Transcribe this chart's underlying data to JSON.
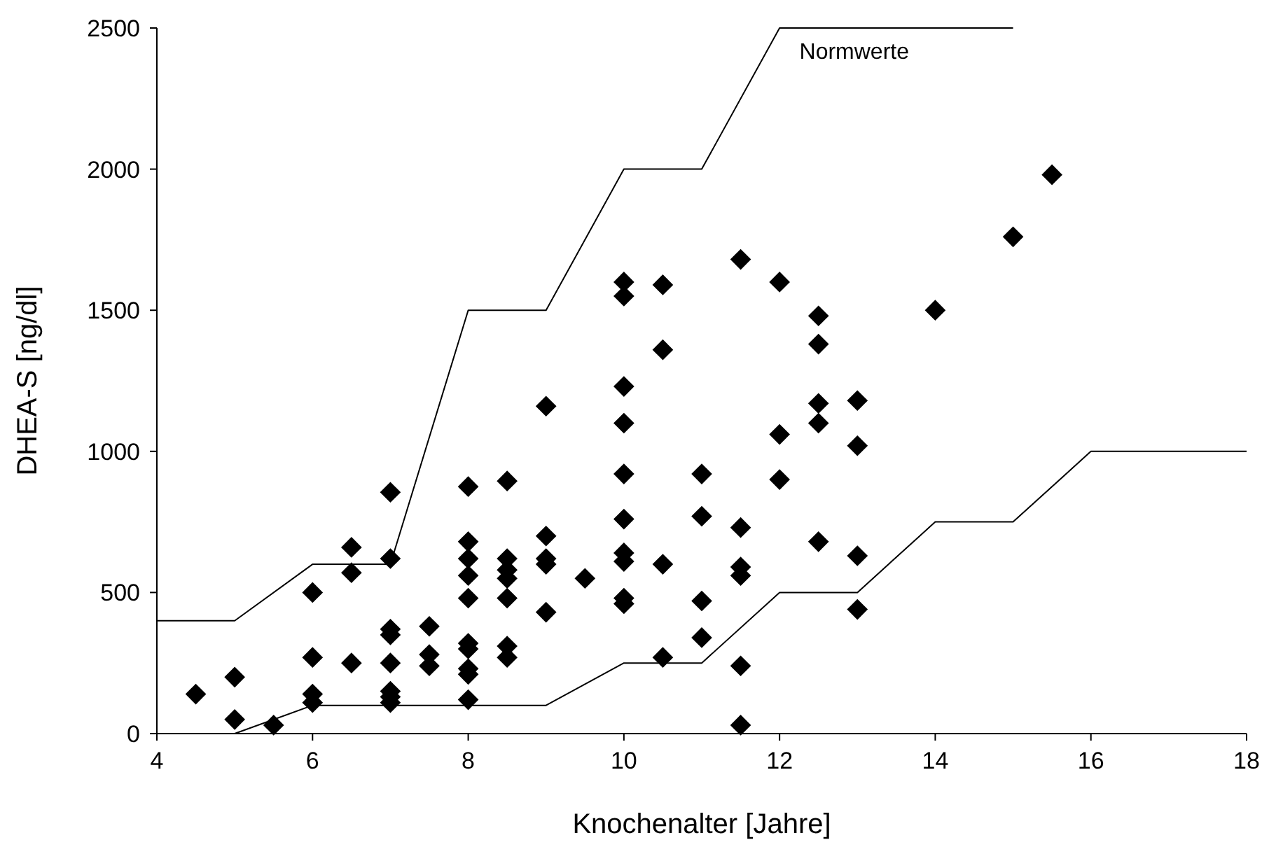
{
  "chart_data": {
    "type": "scatter",
    "xlabel": "Knochenalter [Jahre]",
    "ylabel": "DHEA-S [ng/dl]",
    "xlim": [
      4,
      18
    ],
    "xticks": [
      4,
      6,
      8,
      10,
      12,
      14,
      16,
      18
    ],
    "ylim": [
      0,
      2500
    ],
    "yticks": [
      0,
      500,
      1000,
      1500,
      2000,
      2500
    ],
    "grid": false,
    "marker": "diamond",
    "annotations": [
      "Normwerte"
    ],
    "series": [
      {
        "color": "#000000",
        "x": [
          4.5,
          5,
          5,
          5.5,
          6,
          6,
          6,
          6,
          6.5,
          6.5,
          6.5,
          7,
          7,
          7,
          7,
          7,
          7,
          7,
          7,
          7.5,
          7.5,
          7.5,
          8,
          8,
          8,
          8,
          8,
          8,
          8,
          8,
          8,
          8,
          8.5,
          8.5,
          8.5,
          8.5,
          8.5,
          8.5,
          8.5,
          9,
          9,
          9,
          9,
          9,
          9.5,
          10,
          10,
          10,
          10,
          10,
          10,
          10,
          10,
          10,
          10,
          10.5,
          10.5,
          10.5,
          10.5,
          11,
          11,
          11,
          11,
          11.5,
          11.5,
          11.5,
          11.5,
          11.5,
          11.5,
          12,
          12,
          12,
          12.5,
          12.5,
          12.5,
          12.5,
          12.5,
          13,
          13,
          13,
          13,
          14,
          15,
          15.5
        ],
        "values": [
          140,
          200,
          50,
          30,
          500,
          270,
          140,
          110,
          660,
          570,
          250,
          855,
          620,
          370,
          350,
          250,
          150,
          130,
          110,
          380,
          280,
          240,
          875,
          680,
          620,
          560,
          480,
          320,
          300,
          230,
          210,
          120,
          895,
          620,
          580,
          550,
          480,
          310,
          270,
          1160,
          700,
          620,
          600,
          430,
          550,
          1600,
          1550,
          1230,
          1100,
          920,
          760,
          640,
          610,
          480,
          460,
          1590,
          1360,
          600,
          270,
          920,
          770,
          470,
          340,
          1680,
          730,
          590,
          560,
          240,
          30,
          1600,
          1060,
          900,
          1480,
          1380,
          1170,
          1100,
          680,
          1180,
          1020,
          630,
          440,
          1500,
          1760,
          1980
        ]
      },
      {
        "type": "line",
        "color": "#000000",
        "marker": "none",
        "x": [
          4,
          5,
          6,
          7,
          8,
          9,
          10,
          11,
          12,
          15
        ],
        "values": [
          400,
          400,
          600,
          600,
          1500,
          1500,
          2000,
          2000,
          2500,
          2500
        ]
      },
      {
        "type": "line",
        "color": "#000000",
        "marker": "none",
        "x": [
          5,
          6,
          9,
          10,
          11,
          12,
          13,
          14,
          15,
          16,
          18
        ],
        "values": [
          0,
          100,
          100,
          250,
          250,
          500,
          500,
          750,
          750,
          1000,
          1000
        ]
      }
    ]
  }
}
